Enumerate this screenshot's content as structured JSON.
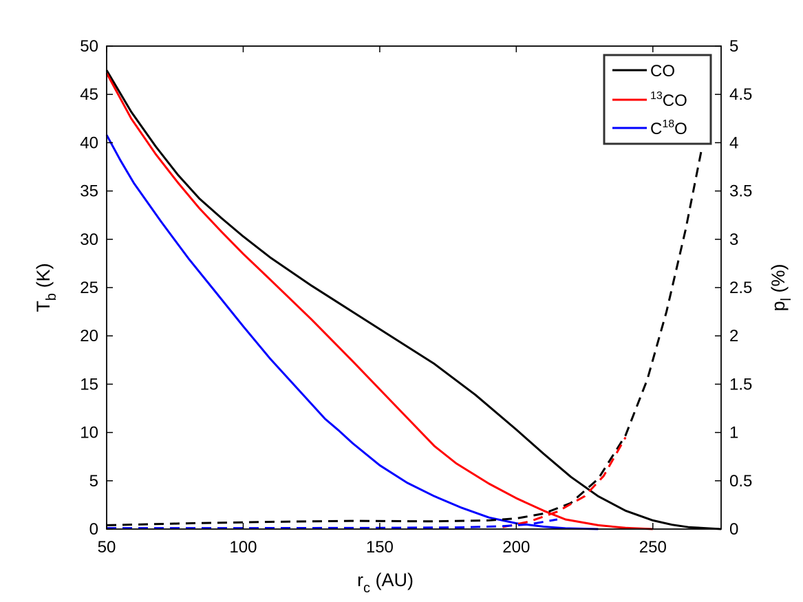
{
  "chart_data": {
    "type": "line",
    "xlabel": {
      "main": "r",
      "sub": "c",
      "rest": " (AU)"
    },
    "ylabel_left": {
      "main": "T",
      "sub": "b",
      "rest": " (K)"
    },
    "ylabel_right": {
      "main": "p",
      "sub": "l",
      "rest": " (%)"
    },
    "xlim": [
      50,
      275
    ],
    "ylim_left": [
      0,
      50
    ],
    "ylim_right": [
      0,
      5
    ],
    "x_ticks": [
      50,
      100,
      150,
      200,
      250
    ],
    "x_tick_labels": [
      "50",
      "100",
      "150",
      "200",
      "250"
    ],
    "y_left_ticks": [
      0,
      5,
      10,
      15,
      20,
      25,
      30,
      35,
      40,
      45,
      50
    ],
    "y_left_tick_labels": [
      "0",
      "5",
      "10",
      "15",
      "20",
      "25",
      "30",
      "35",
      "40",
      "45",
      "50"
    ],
    "y_right_ticks": [
      0,
      0.5,
      1,
      1.5,
      2,
      2.5,
      3,
      3.5,
      4,
      4.5,
      5
    ],
    "y_right_tick_labels": [
      "0",
      "0.5",
      "1",
      "1.5",
      "2",
      "2.5",
      "3",
      "3.5",
      "4",
      "4.5",
      "5"
    ],
    "legend": {
      "position": "top-right",
      "entries": [
        {
          "pre": "",
          "sup": "",
          "mid": "CO",
          "sup2": "",
          "post": ""
        },
        {
          "pre": "",
          "sup": "13",
          "mid": "CO",
          "sup2": "",
          "post": ""
        },
        {
          "pre": "C",
          "sup": "18",
          "mid": "O",
          "sup2": "",
          "post": ""
        }
      ]
    },
    "series": [
      {
        "name": "CO",
        "axis": "left",
        "style": "solid",
        "color": "#000000",
        "x": [
          50,
          59,
          68,
          76,
          84,
          92,
          100,
          110,
          125,
          140,
          155,
          170,
          185,
          200,
          210,
          220,
          230,
          240,
          250,
          257,
          263,
          275
        ],
        "y": [
          47.5,
          43.2,
          39.6,
          36.7,
          34.2,
          32.2,
          30.3,
          28.1,
          25.2,
          22.5,
          19.8,
          17.1,
          13.9,
          10.3,
          7.8,
          5.4,
          3.4,
          1.9,
          0.9,
          0.45,
          0.2,
          0
        ]
      },
      {
        "name": "13CO",
        "axis": "left",
        "style": "solid",
        "color": "#ff0000",
        "x": [
          50,
          59,
          68,
          76,
          84,
          92,
          100,
          110,
          125,
          140,
          155,
          170,
          178,
          190,
          200,
          210,
          218,
          230,
          240,
          250
        ],
        "y": [
          47.2,
          42.5,
          38.8,
          35.9,
          33.2,
          30.8,
          28.5,
          25.8,
          21.7,
          17.4,
          13.0,
          8.6,
          6.8,
          4.7,
          3.2,
          1.9,
          1.0,
          0.4,
          0.12,
          0
        ]
      },
      {
        "name": "C18O",
        "axis": "left",
        "style": "solid",
        "color": "#0000ff",
        "x": [
          50,
          55,
          60,
          65,
          70,
          80,
          90,
          100,
          110,
          120,
          130,
          135,
          140,
          150,
          160,
          170,
          180,
          190,
          200,
          210,
          218,
          230
        ],
        "y": [
          40.8,
          38.2,
          35.8,
          33.8,
          31.8,
          28.0,
          24.5,
          21.0,
          17.6,
          14.5,
          11.4,
          10.2,
          8.9,
          6.6,
          4.8,
          3.4,
          2.2,
          1.2,
          0.6,
          0.25,
          0.08,
          0
        ]
      },
      {
        "name": "CO p_l",
        "axis": "right",
        "style": "dashed",
        "color": "#000000",
        "x": [
          50,
          80,
          110,
          140,
          170,
          190,
          200,
          210,
          220,
          230,
          240,
          248,
          255,
          262,
          268
        ],
        "y": [
          0.04,
          0.06,
          0.075,
          0.085,
          0.08,
          0.09,
          0.11,
          0.16,
          0.27,
          0.52,
          0.97,
          1.55,
          2.25,
          3.1,
          3.95
        ]
      },
      {
        "name": "13CO p_l",
        "axis": "right",
        "style": "dashed",
        "color": "#ff0000",
        "x": [
          195,
          205,
          215,
          225,
          232,
          240
        ],
        "y": [
          0.02,
          0.08,
          0.18,
          0.34,
          0.55,
          0.95
        ]
      },
      {
        "name": "C18O p_l",
        "axis": "right",
        "style": "dashed",
        "color": "#0000ff",
        "x": [
          50,
          100,
          150,
          180,
          195,
          205,
          215
        ],
        "y": [
          0.01,
          0.01,
          0.012,
          0.018,
          0.03,
          0.05,
          0.1
        ]
      }
    ]
  }
}
